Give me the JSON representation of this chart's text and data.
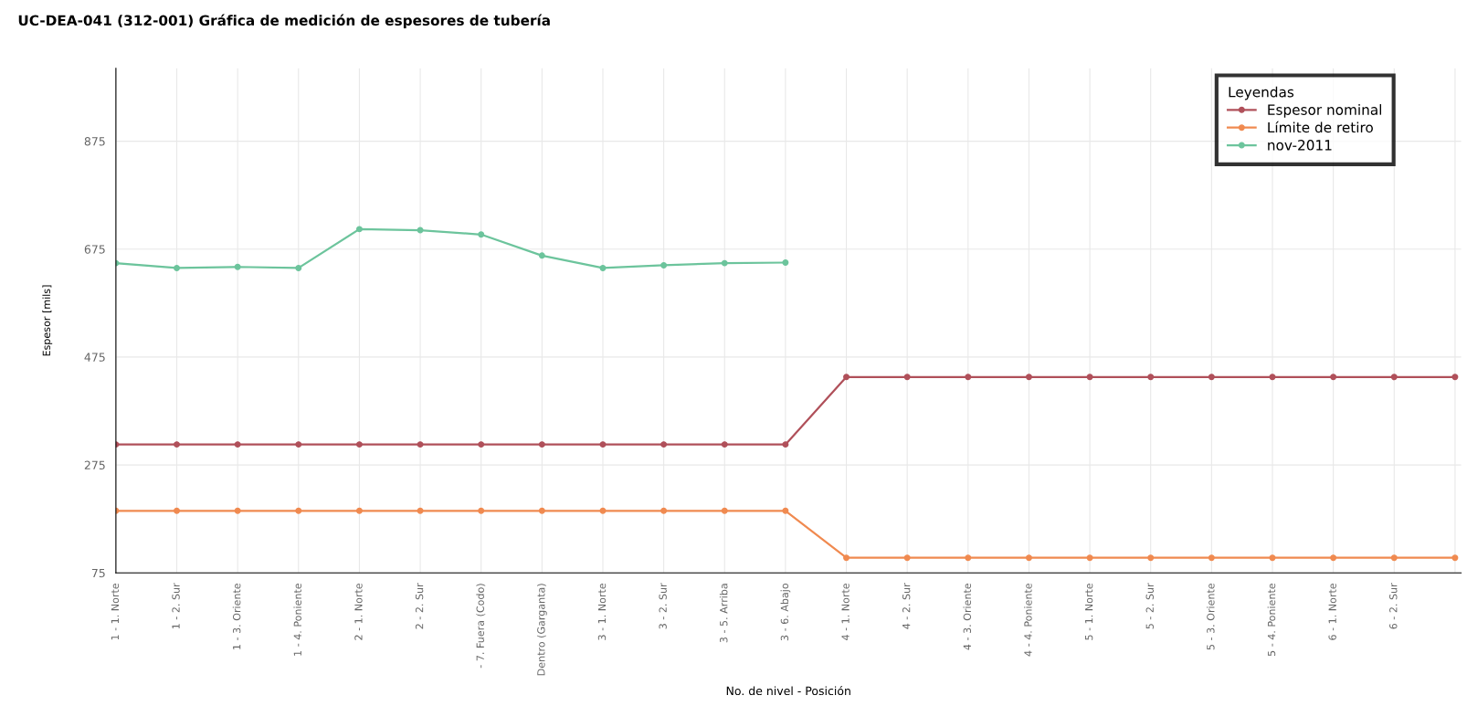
{
  "chart_data": {
    "type": "line",
    "title": "UC-DEA-041 (312-001) Gráfica de medición de espesores de tubería",
    "xlabel": "No. de nivel - Posición",
    "ylabel": "Espesor [mils]",
    "legend_title": "Leyendas",
    "legend": "top right",
    "grid": true,
    "marker": "circle",
    "line_style": "solid",
    "categories": [
      "1 - 1. Norte",
      "1 - 2. Sur",
      "1 - 3. Oriente",
      "1 - 4. Poniente",
      "2 - 1. Norte",
      "2 - 2. Sur",
      "- 7. Fuera (Codo)",
      "Dentro (Garganta)",
      "3 - 1. Norte",
      "3 - 2. Sur",
      "3 - 5. Arriba",
      "3 - 6. Abajo",
      "4 - 1. Norte",
      "4 - 2. Sur",
      "4 - 3. Oriente",
      "4 - 4. Poniente",
      "5 - 1. Norte",
      "5 - 2. Sur",
      "5 - 3. Oriente",
      "5 - 4. Poniente",
      "6 - 1. Norte",
      "6 - 2. Sur",
      null
    ],
    "ylim": [
      75,
      1010
    ],
    "yticks": [
      75,
      275,
      475,
      675,
      875
    ],
    "series": [
      {
        "name": "Espesor nominal",
        "color": "#b0505a",
        "values": [
          313,
          313,
          313,
          313,
          313,
          313,
          313,
          313,
          313,
          313,
          313,
          313,
          438,
          438,
          438,
          438,
          438,
          438,
          438,
          438,
          438,
          438,
          438
        ]
      },
      {
        "name": "Límite de retiro",
        "color": "#f08a50",
        "values": [
          190,
          190,
          190,
          190,
          190,
          190,
          190,
          190,
          190,
          190,
          190,
          190,
          103,
          103,
          103,
          103,
          103,
          103,
          103,
          103,
          103,
          103,
          103
        ]
      },
      {
        "name": "nov-2011",
        "color": "#6cc49c",
        "values": [
          649,
          640,
          642,
          640,
          712,
          710,
          702,
          663,
          640,
          645,
          649,
          650,
          null,
          null,
          null,
          null,
          null,
          null,
          null,
          null,
          null,
          null,
          null
        ]
      }
    ]
  }
}
